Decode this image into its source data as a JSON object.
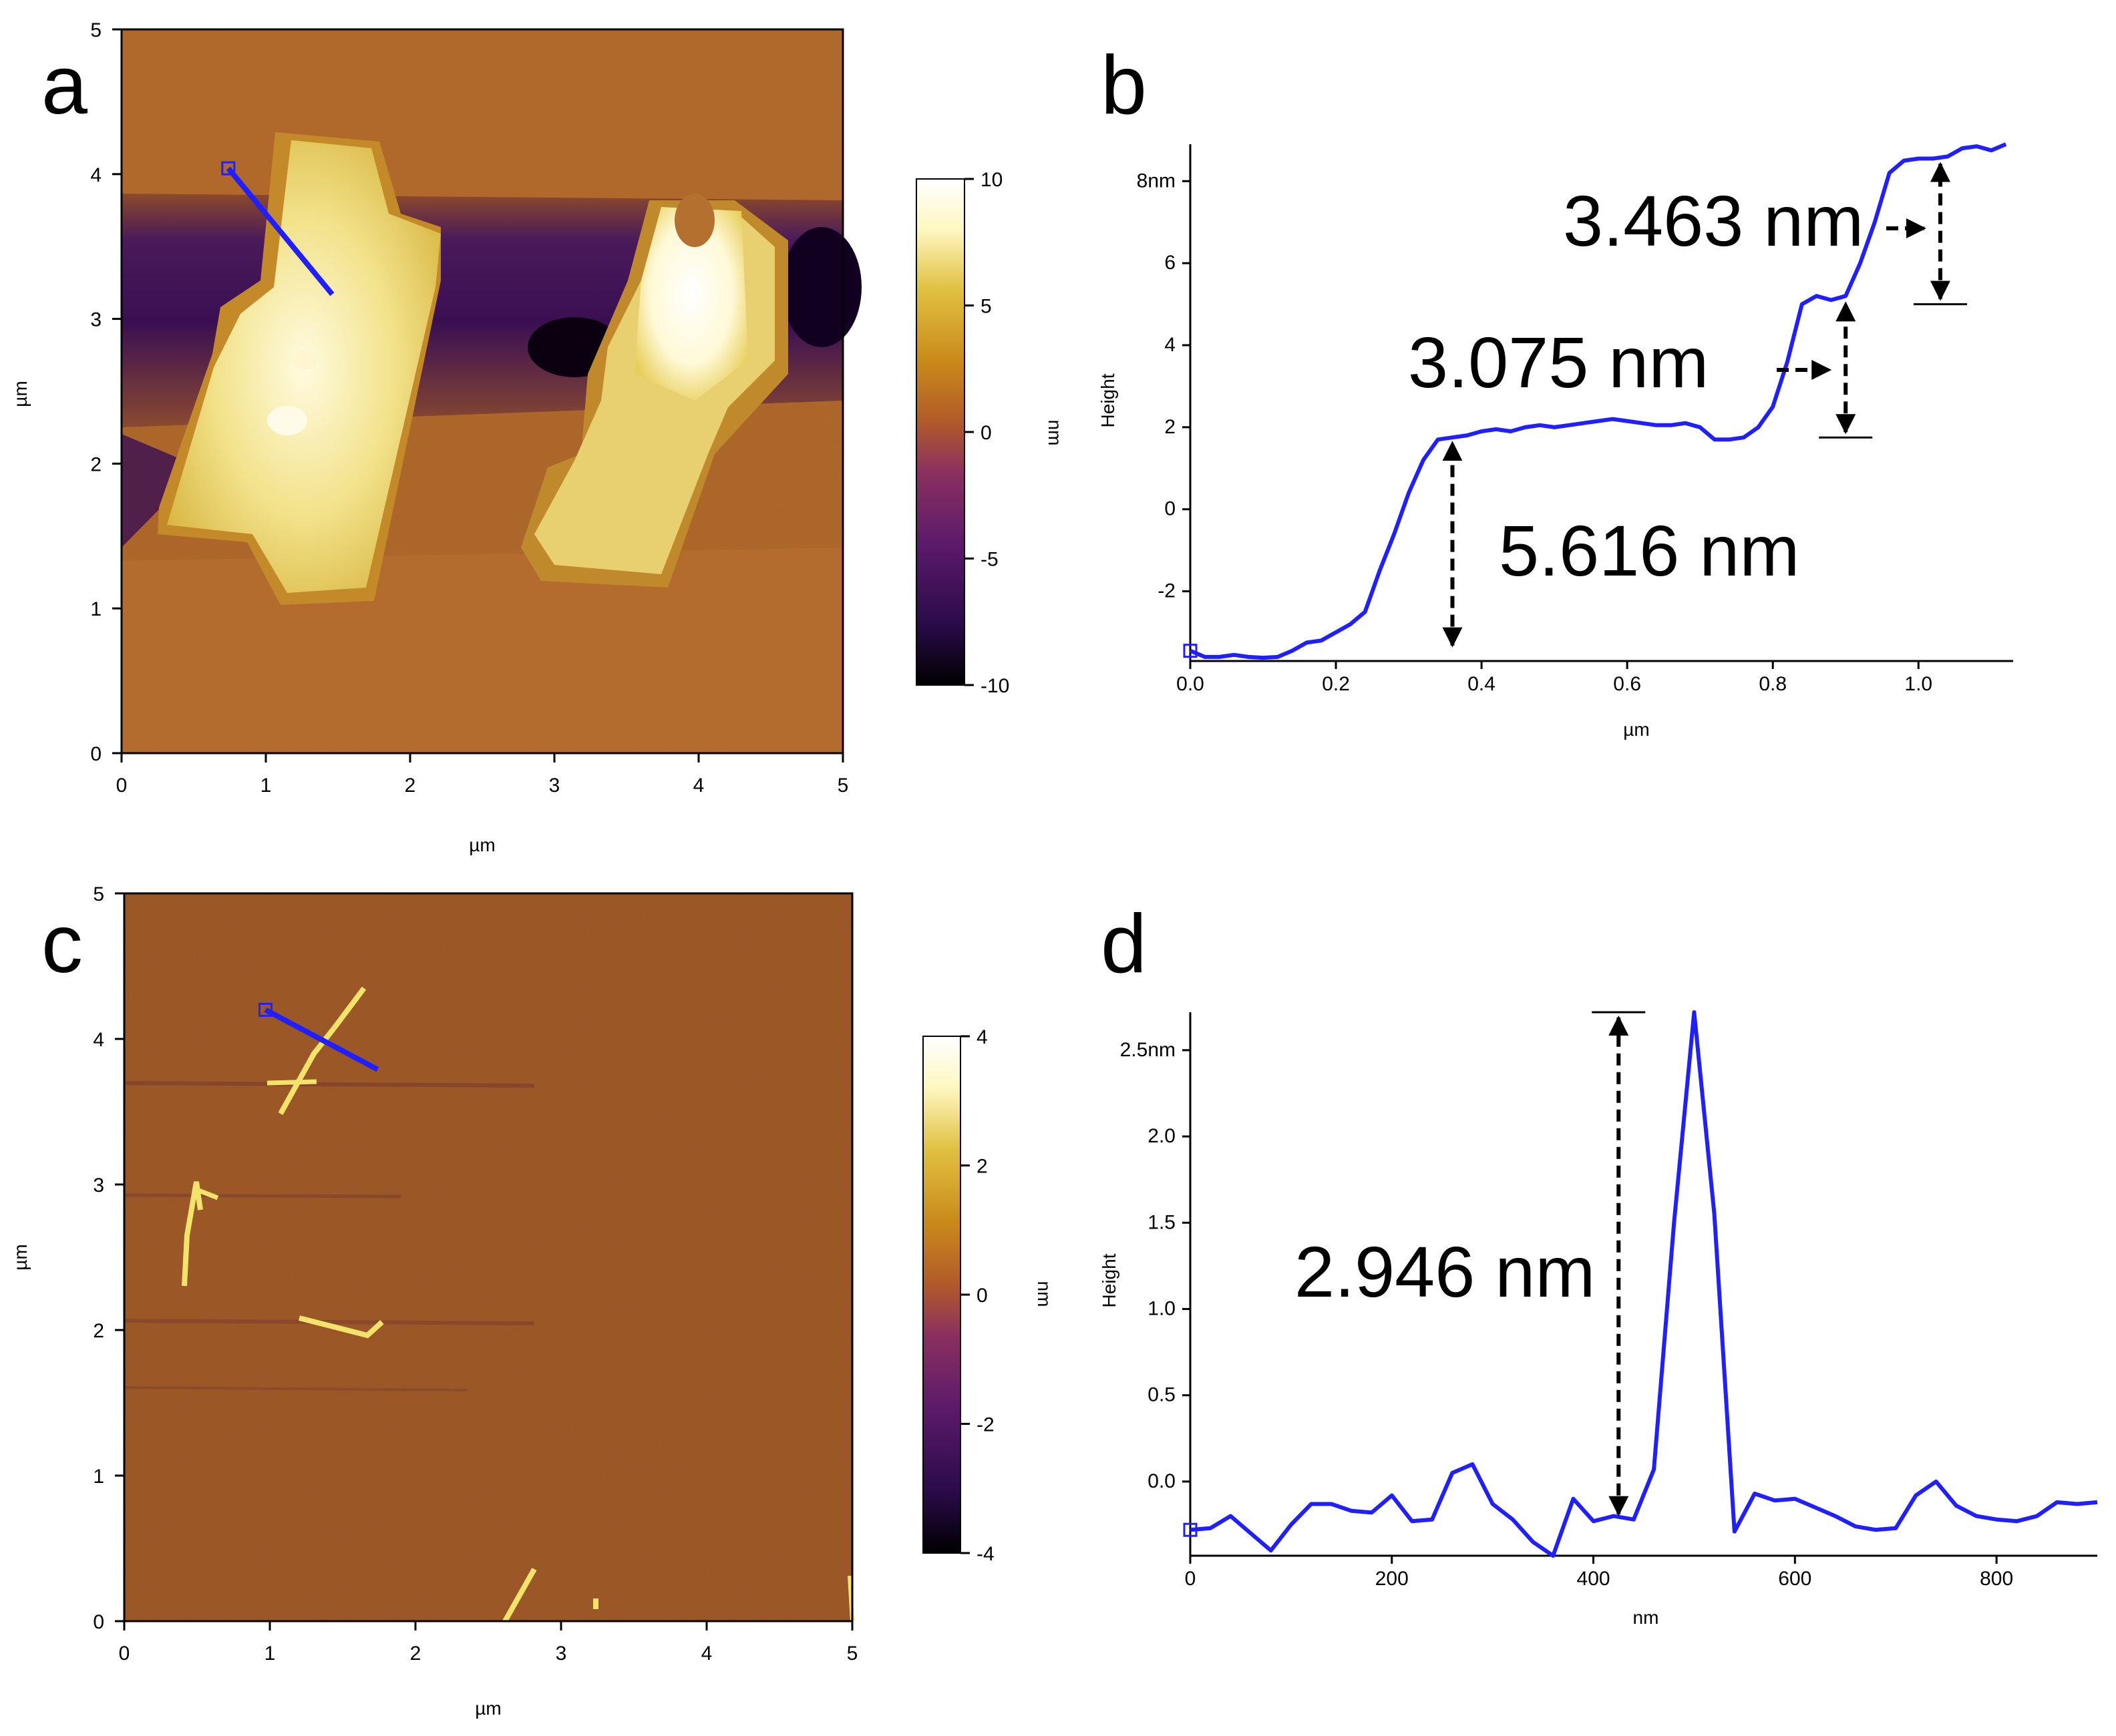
{
  "chart_data": [
    {
      "panel": "a",
      "type": "heatmap",
      "title": "",
      "xlabel": "µm",
      "ylabel": "µm",
      "xlim": [
        0,
        5
      ],
      "ylim": [
        0,
        5
      ],
      "x_ticks": [
        "0",
        "1",
        "2",
        "3",
        "4",
        "5"
      ],
      "y_ticks": [
        "0",
        "1",
        "2",
        "3",
        "4",
        "5"
      ],
      "colorbar": {
        "label": "nm",
        "range": [
          -10,
          10
        ],
        "ticks": [
          "10",
          "5",
          "0",
          "-5",
          "-10"
        ]
      },
      "colormap": [
        "#000000",
        "#2a0b4a",
        "#5c1a6a",
        "#8a3060",
        "#b25a2a",
        "#c98a1a",
        "#e0c040",
        "#fff7c0",
        "#ffffff"
      ],
      "profile_line": {
        "from": [
          0.74,
          4.04
        ],
        "to": [
          1.46,
          3.17
        ]
      }
    },
    {
      "panel": "b",
      "type": "line",
      "xlabel": "µm",
      "ylabel": "Height",
      "xlim": [
        0,
        1.13
      ],
      "ylim": [
        -3.7,
        8.9
      ],
      "x_ticks": [
        "0.0",
        "0.2",
        "0.4",
        "0.6",
        "0.8",
        "1.0"
      ],
      "y_ticks": [
        "-2",
        "0",
        "2",
        "4",
        "6",
        "8nm"
      ],
      "y_tick_values": [
        -2,
        0,
        2,
        4,
        6,
        8
      ],
      "x_tick_values": [
        0,
        0.2,
        0.4,
        0.6,
        0.8,
        1.0
      ],
      "series": [
        {
          "name": "profile",
          "x": [
            0.0,
            0.02,
            0.04,
            0.06,
            0.08,
            0.1,
            0.12,
            0.14,
            0.16,
            0.18,
            0.2,
            0.22,
            0.24,
            0.26,
            0.28,
            0.3,
            0.32,
            0.34,
            0.36,
            0.38,
            0.4,
            0.42,
            0.44,
            0.46,
            0.48,
            0.5,
            0.52,
            0.54,
            0.56,
            0.58,
            0.6,
            0.62,
            0.64,
            0.66,
            0.68,
            0.7,
            0.72,
            0.74,
            0.76,
            0.78,
            0.8,
            0.82,
            0.84,
            0.86,
            0.88,
            0.9,
            0.92,
            0.94,
            0.96,
            0.98,
            1.0,
            1.02,
            1.04,
            1.06,
            1.08,
            1.1,
            1.12
          ],
          "values": [
            -3.45,
            -3.6,
            -3.6,
            -3.55,
            -3.6,
            -3.62,
            -3.6,
            -3.45,
            -3.25,
            -3.2,
            -3.0,
            -2.8,
            -2.5,
            -1.5,
            -0.6,
            0.4,
            1.2,
            1.7,
            1.75,
            1.8,
            1.9,
            1.95,
            1.9,
            2.0,
            2.05,
            2.0,
            2.05,
            2.1,
            2.15,
            2.2,
            2.15,
            2.1,
            2.05,
            2.05,
            2.1,
            2.0,
            1.7,
            1.7,
            1.75,
            2.0,
            2.5,
            3.6,
            5.0,
            5.2,
            5.1,
            5.2,
            6.0,
            7.0,
            8.2,
            8.5,
            8.55,
            8.55,
            8.6,
            8.8,
            8.85,
            8.75,
            8.9
          ]
        }
      ],
      "annotations": [
        {
          "text": "5.616 nm",
          "x_at": 0.36,
          "from": -3.45,
          "to": 1.75
        },
        {
          "text": "3.075 nm",
          "x_at": 0.9,
          "from": 1.75,
          "to": 5.15
        },
        {
          "text": "3.463 nm",
          "x_at": 1.03,
          "from": 5.0,
          "to": 8.55
        }
      ]
    },
    {
      "panel": "c",
      "type": "heatmap",
      "title": "",
      "xlabel": "µm",
      "ylabel": "µm",
      "xlim": [
        0,
        5
      ],
      "ylim": [
        0,
        5
      ],
      "x_ticks": [
        "0",
        "1",
        "2",
        "3",
        "4",
        "5"
      ],
      "y_ticks": [
        "0",
        "1",
        "2",
        "3",
        "4",
        "5"
      ],
      "colorbar": {
        "label": "nm",
        "range": [
          -4,
          4
        ],
        "ticks": [
          "4",
          "2",
          "0",
          "-2",
          "-4"
        ]
      },
      "colormap": [
        "#000000",
        "#2a0b4a",
        "#5c1a6a",
        "#8a3060",
        "#b25a2a",
        "#c98a1a",
        "#e0c040",
        "#fff7c0",
        "#ffffff"
      ],
      "profile_line": {
        "from": [
          0.97,
          4.2
        ],
        "to": [
          1.74,
          3.79
        ]
      }
    },
    {
      "panel": "d",
      "type": "line",
      "xlabel": "nm",
      "ylabel": "Height",
      "xlim": [
        0,
        900
      ],
      "ylim": [
        -0.43,
        2.72
      ],
      "x_ticks": [
        "0",
        "200",
        "400",
        "600",
        "800"
      ],
      "y_ticks": [
        "0.0",
        "0.5",
        "1.0",
        "1.5",
        "2.0",
        "2.5nm"
      ],
      "y_tick_values": [
        0.0,
        0.5,
        1.0,
        1.5,
        2.0,
        2.5
      ],
      "x_tick_values": [
        0,
        200,
        400,
        600,
        800
      ],
      "series": [
        {
          "name": "profile",
          "x": [
            0,
            20,
            40,
            60,
            80,
            100,
            120,
            140,
            160,
            180,
            200,
            220,
            240,
            260,
            280,
            300,
            320,
            340,
            360,
            380,
            400,
            420,
            440,
            460,
            480,
            500,
            520,
            540,
            560,
            580,
            600,
            620,
            640,
            660,
            680,
            700,
            720,
            740,
            760,
            780,
            800,
            820,
            840,
            860,
            880,
            900
          ],
          "values": [
            -0.28,
            -0.27,
            -0.2,
            -0.3,
            -0.4,
            -0.25,
            -0.13,
            -0.13,
            -0.17,
            -0.18,
            -0.08,
            -0.23,
            -0.22,
            0.05,
            0.1,
            -0.13,
            -0.22,
            -0.35,
            -0.43,
            -0.1,
            -0.23,
            -0.2,
            -0.22,
            0.07,
            1.5,
            2.72,
            1.55,
            -0.29,
            -0.07,
            -0.11,
            -0.1,
            -0.15,
            -0.2,
            -0.26,
            -0.28,
            -0.27,
            -0.08,
            0.0,
            -0.14,
            -0.2,
            -0.22,
            -0.23,
            -0.2,
            -0.12,
            -0.13,
            -0.12
          ]
        }
      ],
      "annotations": [
        {
          "text": "2.946 nm",
          "x_at": 425,
          "from": -0.22,
          "to": 2.72
        }
      ]
    }
  ]
}
